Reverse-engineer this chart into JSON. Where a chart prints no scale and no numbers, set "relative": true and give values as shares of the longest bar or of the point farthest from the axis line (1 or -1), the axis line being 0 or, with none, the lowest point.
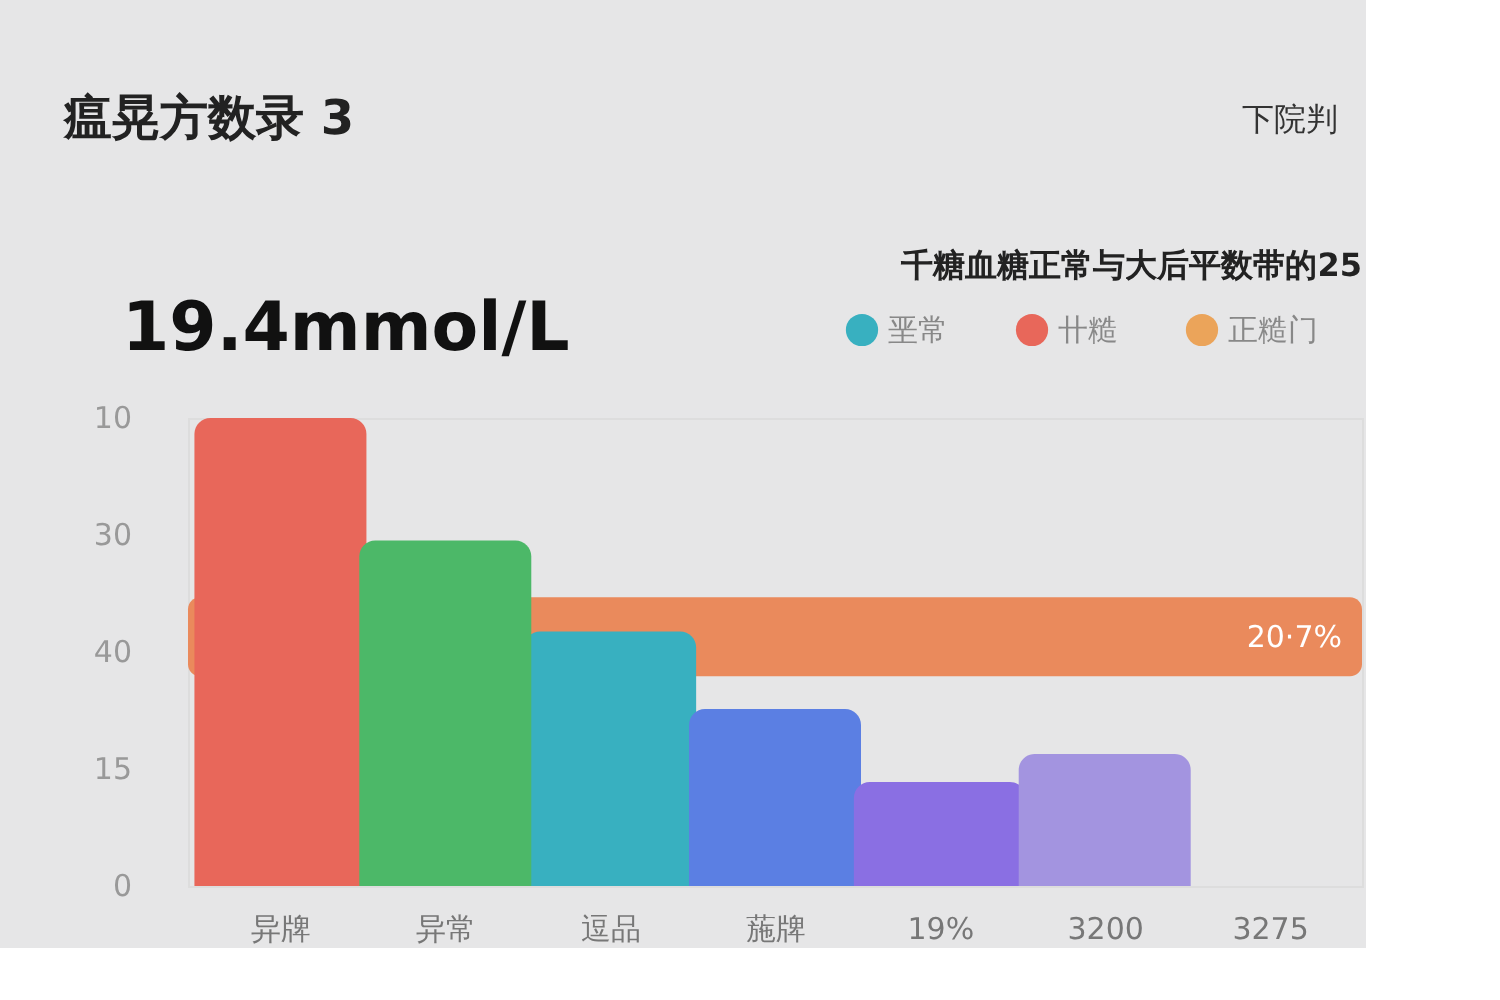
{
  "chart_data": {
    "type": "bar",
    "title": "瘟晃方数录 3",
    "subtitle": "19.4mmol/L",
    "legend_title": "千糖血糖正常与大后平数带的25",
    "annotations": [
      "下院判",
      "0",
      "15",
      "40",
      "30",
      "10"
    ],
    "categories": [
      "异牌",
      "异常",
      "逗品",
      "葹牌",
      "19%",
      "3200",
      "3275"
    ],
    "relative": true,
    "legend": "top right",
    "series": [
      {
        "name": "垩常",
        "color": "#38b0c0",
        "values": [
          null,
          null,
          0.544,
          null,
          null,
          null,
          null
        ]
      },
      {
        "name": "卄糙",
        "color": "#e8675a",
        "values": [
          1,
          null,
          null,
          null,
          null,
          null,
          null
        ]
      },
      {
        "name": "正糙门",
        "color": "#eba45a",
        "values": [
          null,
          null,
          null,
          null,
          null,
          null,
          null
        ]
      },
      {
        "color": "#4cb868",
        "values": [
          null,
          0.738,
          null,
          null,
          null,
          null,
          null
        ]
      },
      {
        "color": "#5b7fe3",
        "values": [
          null,
          null,
          null,
          0.378,
          null,
          null,
          null
        ]
      },
      {
        "color": "#8a6fe3",
        "values": [
          null,
          null,
          null,
          null,
          0.222,
          null,
          null
        ]
      },
      {
        "color": "#a394e0",
        "values": [
          null,
          null,
          null,
          null,
          null,
          0.282,
          null
        ]
      }
    ],
    "bands": [
      {
        "axis": "y",
        "from": 0.448,
        "to": 0.617,
        "label": "20·7%",
        "color": "#ea8a5c"
      }
    ]
  }
}
